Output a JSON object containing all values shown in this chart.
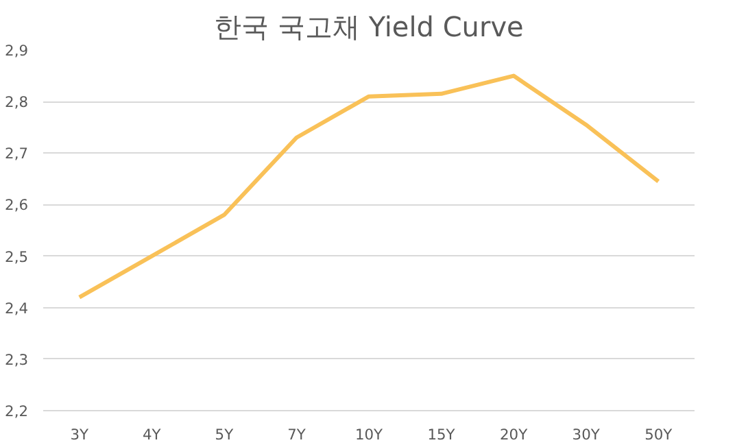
{
  "chart_data": {
    "type": "line",
    "title": "한국 국고채 Yield Curve",
    "categories": [
      "3Y",
      "4Y",
      "5Y",
      "7Y",
      "10Y",
      "15Y",
      "20Y",
      "30Y",
      "50Y"
    ],
    "series": [
      {
        "color": "#f9c158",
        "values": [
          2.42,
          2.5,
          2.58,
          2.73,
          2.81,
          2.815,
          2.85,
          2.755,
          2.645
        ]
      }
    ],
    "ylim": [
      2.2,
      2.9
    ],
    "yticks": [
      {
        "value": 2.2,
        "label": "2,2"
      },
      {
        "value": 2.3,
        "label": "2,3"
      },
      {
        "value": 2.4,
        "label": "2,4"
      },
      {
        "value": 2.5,
        "label": "2,5"
      },
      {
        "value": 2.6,
        "label": "2,6"
      },
      {
        "value": 2.7,
        "label": "2,7"
      },
      {
        "value": 2.8,
        "label": "2,8"
      },
      {
        "value": 2.9,
        "label": "2,9"
      }
    ],
    "grid": "y",
    "marker": "none",
    "line_style": "solid"
  }
}
